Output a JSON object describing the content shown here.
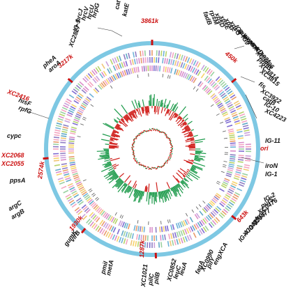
{
  "colors": {
    "backbone": "#7ec8e3",
    "gc_skew_pos": "#d0201c",
    "gc_skew_neg": "#1c9a4a",
    "coord_text": "#cc1111",
    "label_text": "#111111",
    "tick": "#cc1111",
    "gene_palette": [
      "#8e7cc3",
      "#f4a5c0",
      "#c9a0dc",
      "#6fb3d8",
      "#f0c674",
      "#9ad0a0",
      "#e89a6b",
      "#b5d36a",
      "#7e6bd1",
      "#d98cc9",
      "#5fa8c7",
      "#f7d36a"
    ]
  },
  "coordinates": {
    "c3861": "3861k",
    "c450": "450k",
    "c643": "643k",
    "c1287": "1287k",
    "c1930": "1930k",
    "c2574": "2574k",
    "c3217": "3217k",
    "ori": "ori"
  },
  "labels": {
    "cat": "cat",
    "katE": "katE",
    "hrpG": "hrpG",
    "hrcU": "hrcU",
    "hrcV": "hrcV",
    "hrcJ": "hrcJ",
    "ig5": "IG-5",
    "xc2827": "XC2827",
    "fadB": "fadB",
    "rpsM": "rpsM",
    "xpsD": "xpsD",
    "xpsE": "xpsE",
    "xpsF": "xpsF",
    "xpsG": "xpsG",
    "ig6": "IG6-IG9",
    "gum": "gumA",
    "wxcB": "wxcB",
    "wxcA": "wxcA",
    "wxcD": "wxcD",
    "xc3821": "XC3821",
    "xc3696": "XC3696",
    "ppdB": "ppdB",
    "xc3814": "XC3814",
    "xc3815": "XC3815",
    "fis": "fis",
    "xc3922": "XC3922",
    "catB": "catB",
    "ig10": "IG-10",
    "xc4223": "XC4223",
    "ig11": "IG-11",
    "ironN": "iroN",
    "ig1": "IG-1",
    "ig2": "IG-2",
    "purS": "purS",
    "xc0476": "XC0476",
    "trpE": "trpE",
    "xc0477": "XC0477",
    "ig3": "IG-3",
    "ig4": "IG-4",
    "xc0479": "XC0479",
    "engXCA": "engXCA",
    "pilY": "pilY",
    "xc0990": "XC0990",
    "fagA": "fagA",
    "leuA": "leuA",
    "leuC": "leuC",
    "xc0852": "XC0852",
    "pilB": "pilB",
    "pilC": "pilC",
    "xc1021": "XC1021",
    "metA": "metA",
    "pmiI": "pmiI",
    "gumK": "gumK",
    "virB": "virB",
    "argC": "argC",
    "argB": "argB",
    "ppsA": "ppsA",
    "xc2068": "XC2068",
    "xc2055": "XC2055",
    "cypc": "cypc",
    "hisF": "hisF",
    "rpfG": "rpfG",
    "xc2416": "XC2416",
    "pheA": "pheA",
    "aroA": "aroA"
  }
}
